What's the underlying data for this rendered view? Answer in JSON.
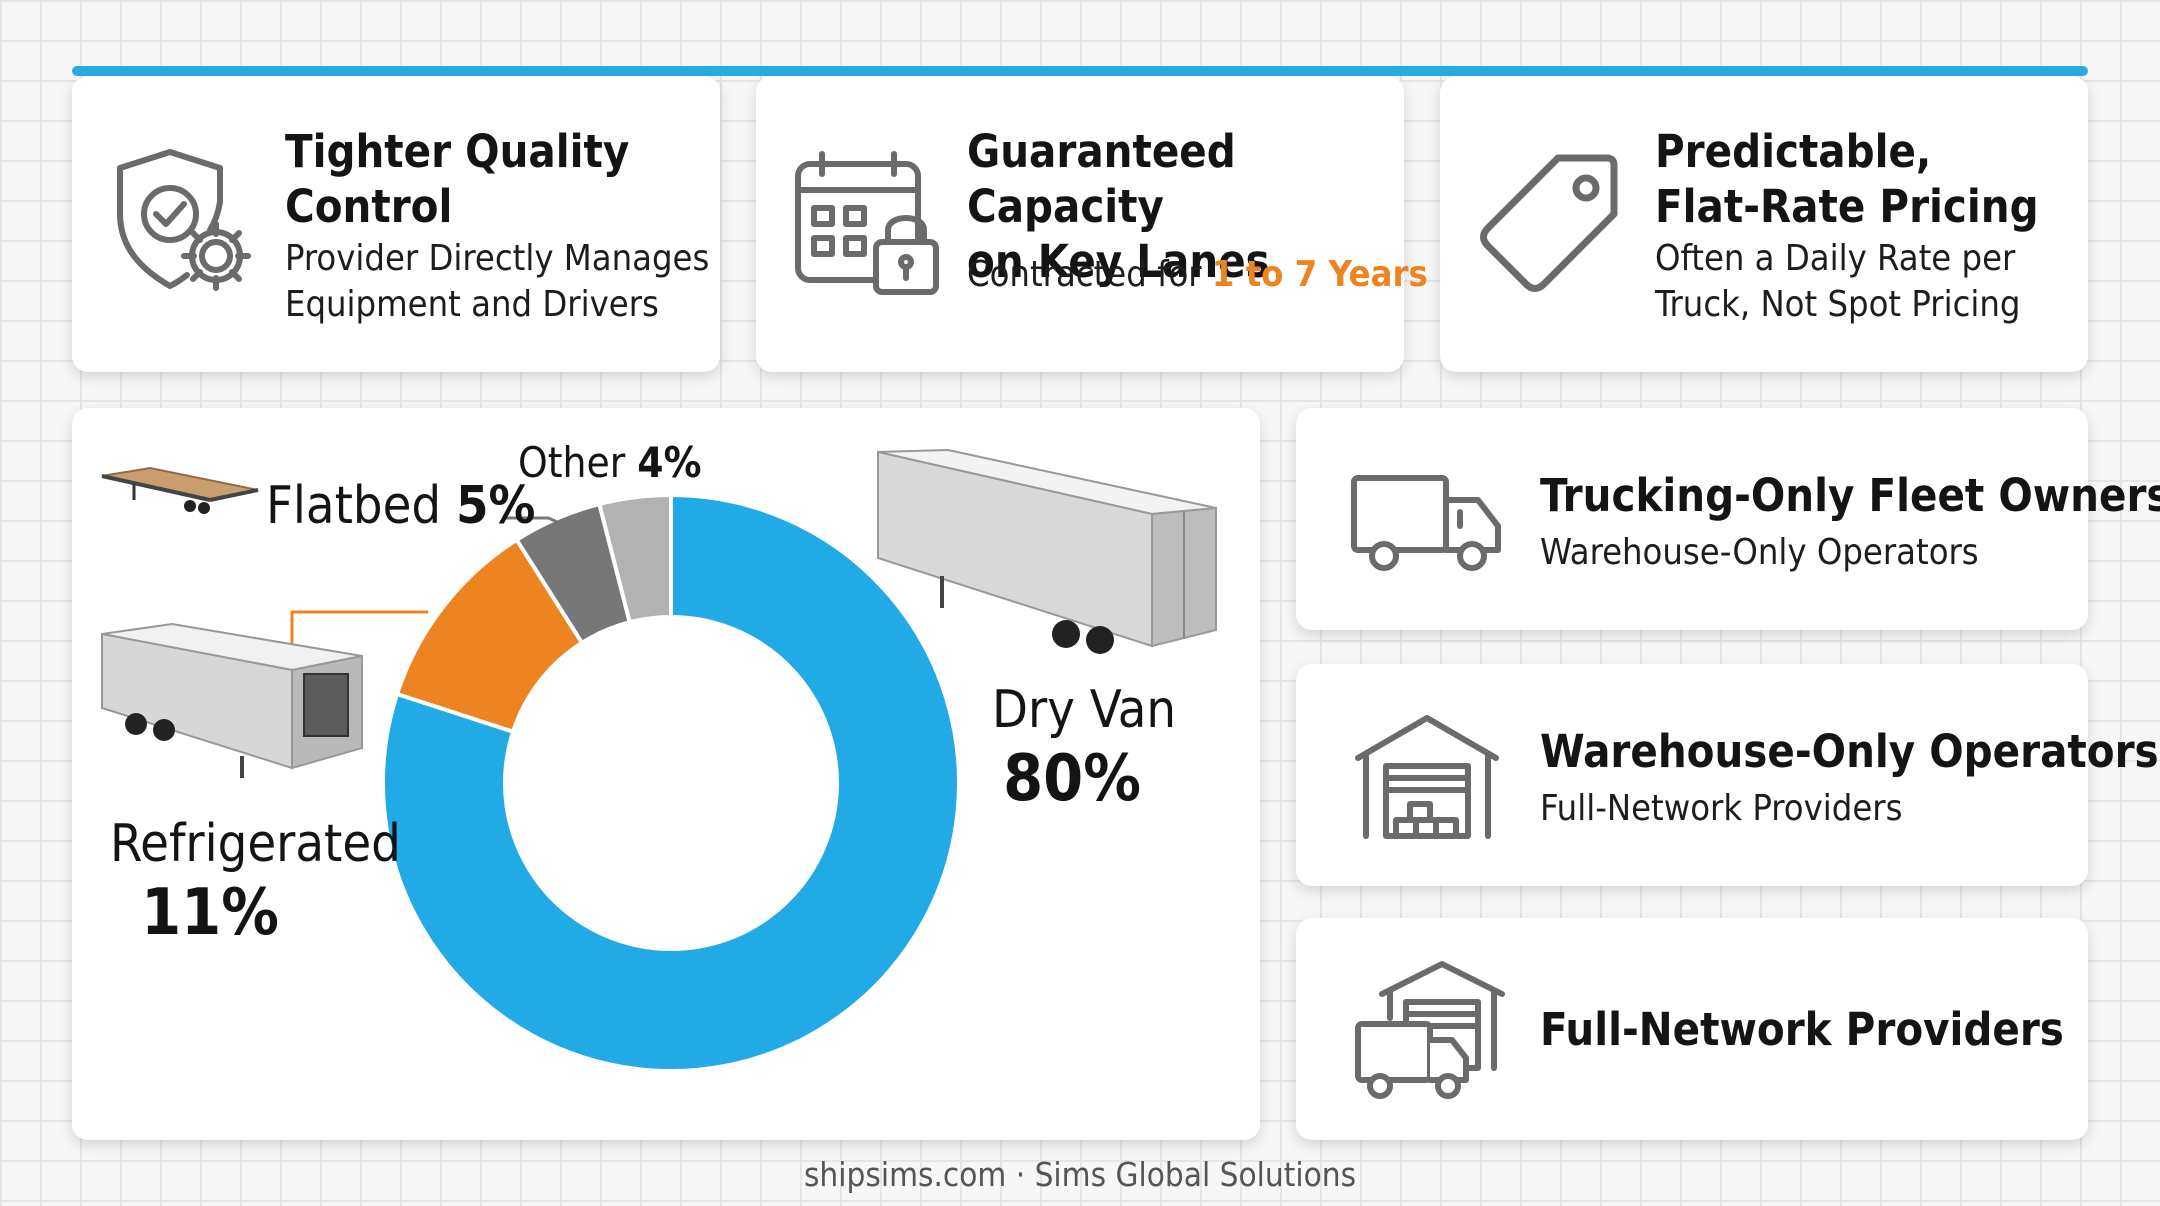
{
  "features": [
    {
      "title_lines": [
        "Tighter Quality",
        "Control"
      ],
      "subtitle_lines": [
        "Provider Directly Manages",
        "Equipment and Drivers"
      ],
      "icon": "shield-gear-icon"
    },
    {
      "title_lines": [
        "Guaranteed Capacity",
        "on Key Lanes"
      ],
      "subtitle_prefix": "Contracted for ",
      "subtitle_highlight": "1 to 7 Years",
      "icon": "calendar-lock-icon"
    },
    {
      "title_lines": [
        "Predictable,",
        "Flat-Rate Pricing"
      ],
      "subtitle_lines": [
        "Often a Daily Rate per",
        "Truck, Not Spot Pricing"
      ],
      "icon": "price-tag-icon"
    }
  ],
  "providers": [
    {
      "title": "Trucking-Only Fleet Owners",
      "subtitle": "Warehouse-Only Operators",
      "icon": "truck-icon"
    },
    {
      "title": "Warehouse-Only Operators",
      "subtitle": "Full-Network Providers",
      "icon": "warehouse-icon"
    },
    {
      "title": "Full-Network Providers",
      "subtitle": "",
      "icon": "warehouse-truck-icon"
    }
  ],
  "chart_data": {
    "type": "pie",
    "donut": true,
    "categories": [
      "Dry Van",
      "Refrigerated",
      "Flatbed",
      "Other"
    ],
    "values": [
      80,
      11,
      5,
      4
    ],
    "value_labels": [
      "80%",
      "11%",
      "5%",
      "4%"
    ],
    "colors": [
      "#22aae6",
      "#ee8421",
      "#777777",
      "#b2b2b2"
    ],
    "start": "12 o'clock, clockwise"
  },
  "footer": "shipsims.com · Sims Global Solutions"
}
